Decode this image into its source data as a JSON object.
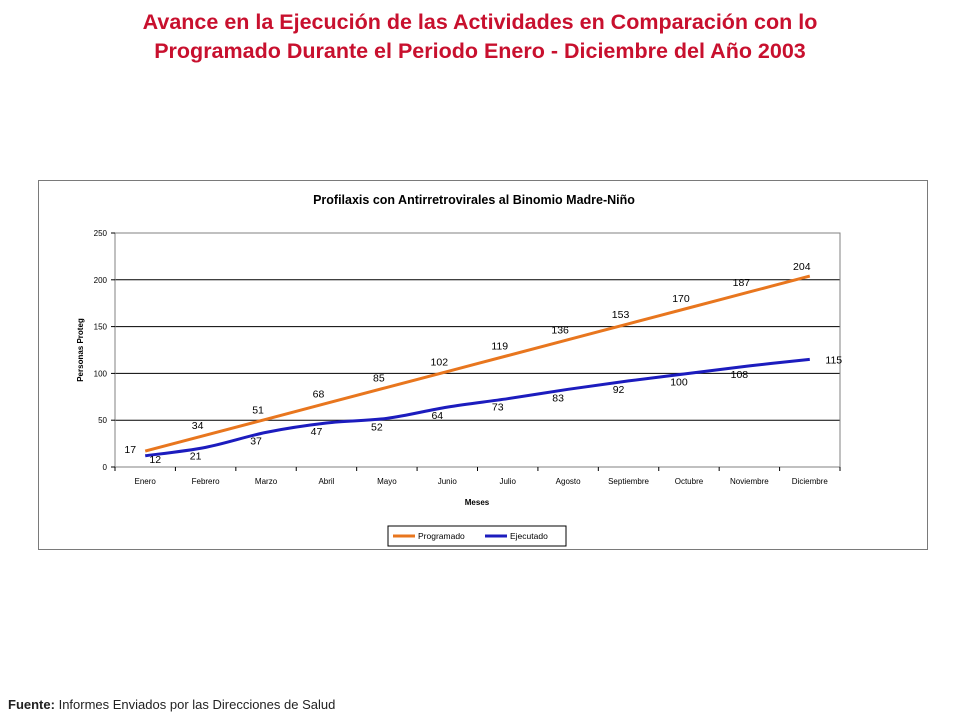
{
  "slide": {
    "title_line1": "Avance en la Ejecución de las Actividades en Comparación con lo",
    "title_line2": "Programado Durante el Periodo Enero - Diciembre del Año 2003"
  },
  "footer": {
    "label": "Fuente:",
    "text": "Informes Enviados por las Direcciones de Salud"
  },
  "colors": {
    "programado": "#e8761e",
    "ejecutado": "#1c1cbe",
    "title": "#c8102e"
  },
  "chart_data": {
    "type": "line",
    "title": "Profilaxis con Antirretrovirales al Binomio Madre-Niño",
    "xlabel": "Meses",
    "ylabel": "Personas Proteg",
    "ylim": [
      0,
      250
    ],
    "yticks": [
      0,
      50,
      100,
      150,
      200,
      250
    ],
    "grid": true,
    "legend_position": "bottom",
    "categories": [
      "Enero",
      "Febrero",
      "Marzo",
      "Abril",
      "Mayo",
      "Junio",
      "Julio",
      "Agosto",
      "Septiembre",
      "Octubre",
      "Noviembre",
      "Diciembre"
    ],
    "series": [
      {
        "name": "Programado",
        "values": [
          17,
          34,
          51,
          68,
          85,
          102,
          119,
          136,
          153,
          170,
          187,
          204
        ]
      },
      {
        "name": "Ejecutado",
        "values": [
          12,
          21,
          37,
          47,
          52,
          64,
          73,
          83,
          92,
          100,
          108,
          115
        ]
      }
    ]
  }
}
